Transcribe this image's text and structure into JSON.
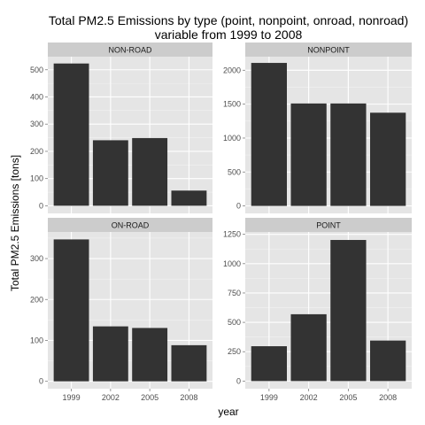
{
  "chart_data": {
    "type": "bar",
    "title_lines": [
      "Total PM2.5 Emissions by type (point, nonpoint, onroad, nonroad)",
      "variable from 1999 to 2008"
    ],
    "xlabel": "year",
    "ylabel": "Total PM2.5 Emissions [tons]",
    "categories": [
      "1999",
      "2002",
      "2005",
      "2008"
    ],
    "grid": true,
    "colors": {
      "bar": "#333333",
      "panel_bg": "#e5e5e5",
      "grid": "#ffffff",
      "strip_bg": "#cccccc"
    },
    "facets": [
      {
        "label": "NON-ROAD",
        "values": [
          522.9,
          240.8,
          248.9,
          55.8
        ],
        "ylim": [
          -28,
          548
        ],
        "yticks": [
          0,
          100,
          200,
          300,
          400,
          500
        ]
      },
      {
        "label": "NONPOINT",
        "values": [
          2108,
          1510,
          1510,
          1374
        ],
        "ylim": [
          -110,
          2200
        ],
        "yticks": [
          0,
          500,
          1000,
          1500,
          2000
        ]
      },
      {
        "label": "ON-ROAD",
        "values": [
          346.8,
          134.3,
          130.4,
          88.3
        ],
        "ylim": [
          -18,
          365
        ],
        "yticks": [
          0,
          100,
          200,
          300
        ]
      },
      {
        "label": "POINT",
        "values": [
          296.8,
          569.3,
          1202,
          344.98
        ],
        "ylim": [
          -65,
          1270
        ],
        "yticks": [
          0,
          250,
          500,
          750,
          1000,
          1250
        ]
      }
    ]
  }
}
